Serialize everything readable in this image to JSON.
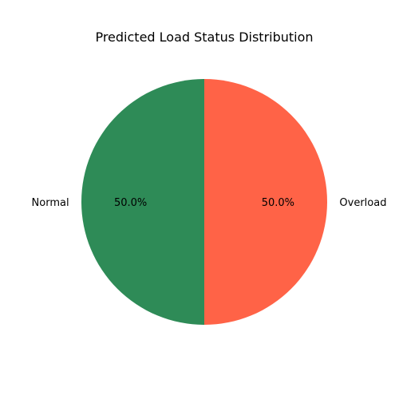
{
  "chart_data": {
    "type": "pie",
    "title": "Predicted Load Status Distribution",
    "categories": [
      "Normal",
      "Overload"
    ],
    "values": [
      50.0,
      50.0
    ],
    "percent_labels": [
      "50.0%",
      "50.0%"
    ],
    "colors": [
      "#2e8b57",
      "#ff6347"
    ],
    "start_angle_deg": 90,
    "direction": "counterclockwise",
    "legend": "none"
  }
}
